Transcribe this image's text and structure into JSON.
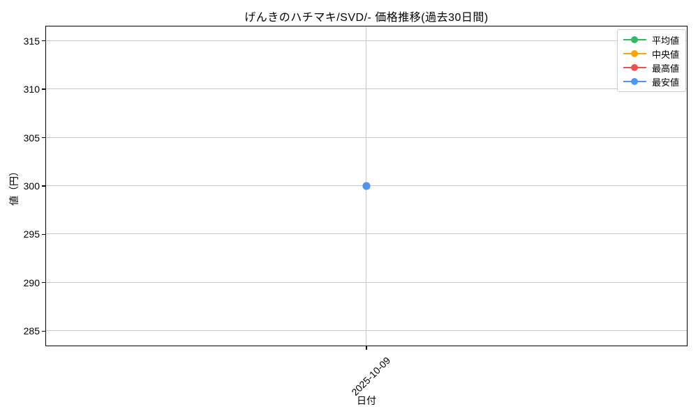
{
  "chart_data": {
    "type": "line",
    "title": "げんきのハチマキ/SVD/- 価格推移(過去30日間)",
    "xlabel": "日付",
    "ylabel": "値（円）",
    "x": [
      "2025-10-09"
    ],
    "series": [
      {
        "name": "平均値",
        "color": "#2eba66",
        "values": [
          300
        ]
      },
      {
        "name": "中央値",
        "color": "#ffa502",
        "values": [
          300
        ]
      },
      {
        "name": "最高値",
        "color": "#f25050",
        "values": [
          300
        ]
      },
      {
        "name": "最安値",
        "color": "#4b96f2",
        "values": [
          300
        ]
      }
    ],
    "yticks": [
      285,
      290,
      295,
      300,
      305,
      310,
      315
    ],
    "ylim": [
      283.55,
      316.45
    ],
    "grid": true,
    "legend_position": "upper right",
    "marker": "o"
  },
  "colors": {
    "background": "#ffffff",
    "axis": "#000000",
    "grid": "#c9c9c9",
    "legend_border": "#cccccc"
  }
}
